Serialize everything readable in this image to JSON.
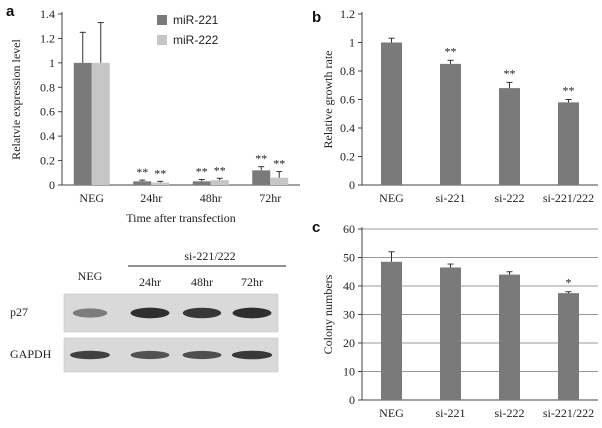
{
  "chart_data": [
    {
      "panel": "a",
      "type": "bar",
      "ylabel": "Relatvie expression level",
      "xlabel": "Time after transfection",
      "categories": [
        "NEG",
        "24hr",
        "48hr",
        "72hr"
      ],
      "ylim": [
        0,
        1.4
      ],
      "yticks": [
        "0",
        "0.2",
        "0.4",
        "0.6",
        "0.8",
        "1",
        "1.2",
        "1.4"
      ],
      "series": [
        {
          "name": "miR-221",
          "color": "#7a7a7a",
          "values": [
            1.0,
            0.03,
            0.03,
            0.12
          ],
          "errors": [
            0.25,
            0.01,
            0.015,
            0.03
          ]
        },
        {
          "name": "miR-222",
          "color": "#c6c6c6",
          "values": [
            1.0,
            0.02,
            0.04,
            0.06
          ],
          "errors": [
            0.33,
            0.01,
            0.015,
            0.05
          ]
        }
      ],
      "significance": [
        {
          "category": "24hr",
          "series": 0,
          "label": "**"
        },
        {
          "category": "24hr",
          "series": 1,
          "label": "**"
        },
        {
          "category": "48hr",
          "series": 0,
          "label": "**"
        },
        {
          "category": "48hr",
          "series": 1,
          "label": "**"
        },
        {
          "category": "72hr",
          "series": 0,
          "label": "**"
        },
        {
          "category": "72hr",
          "series": 1,
          "label": "**"
        }
      ],
      "legend": "top-right",
      "grid": false
    },
    {
      "panel": "b",
      "type": "bar",
      "ylabel": "Relative growth rate",
      "categories": [
        "NEG",
        "si-221",
        "si-222",
        "si-221/222"
      ],
      "ylim": [
        0,
        1.2
      ],
      "yticks": [
        "0",
        "0.2",
        "0.4",
        "0.6",
        "0.8",
        "1",
        "1.2"
      ],
      "values": [
        1.0,
        0.85,
        0.68,
        0.58
      ],
      "errors": [
        0.03,
        0.025,
        0.04,
        0.02
      ],
      "color": "#7a7a7a",
      "significance": [
        "",
        "**",
        "**",
        "**"
      ],
      "grid": false
    },
    {
      "panel": "c",
      "type": "bar",
      "ylabel": "Colony numbers",
      "categories": [
        "NEG",
        "si-221",
        "si-222",
        "si-221/222"
      ],
      "ylim": [
        0,
        60
      ],
      "yticks": [
        "0",
        "10",
        "20",
        "30",
        "40",
        "50",
        "60"
      ],
      "values": [
        48.5,
        46.5,
        44,
        37.5
      ],
      "errors": [
        3.5,
        1.2,
        1,
        0.5
      ],
      "color": "#7a7a7a",
      "significance": [
        "",
        "",
        "",
        "*"
      ],
      "grid": true
    }
  ],
  "panel_letters": {
    "a": "a",
    "b": "b",
    "c": "c"
  },
  "blot": {
    "group_label": "si-221/222",
    "lanes": [
      "NEG",
      "24hr",
      "48hr",
      "72hr"
    ],
    "rows": [
      {
        "label": "p27",
        "intensity": [
          0.45,
          0.9,
          0.85,
          0.9
        ]
      },
      {
        "label": "GAPDH",
        "intensity": [
          0.8,
          0.7,
          0.72,
          0.85
        ]
      }
    ]
  }
}
